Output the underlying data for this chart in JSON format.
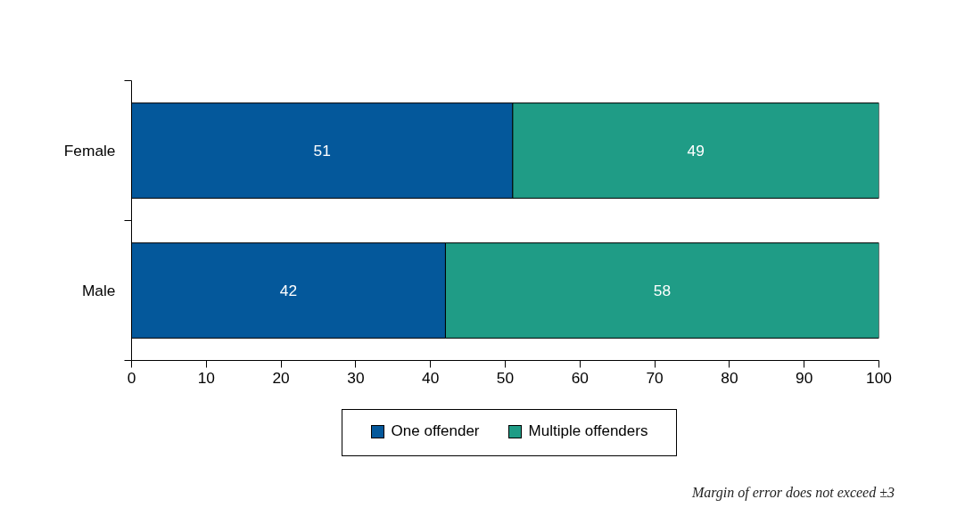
{
  "chart_data": {
    "type": "bar",
    "orientation": "horizontal",
    "stacked": true,
    "categories": [
      "Female",
      "Male"
    ],
    "series": [
      {
        "name": "One offender",
        "color": "#04589b",
        "values": [
          51,
          42
        ]
      },
      {
        "name": "Multiple offenders",
        "color": "#1f9c86",
        "values": [
          49,
          58
        ]
      }
    ],
    "xlim": [
      0,
      100
    ],
    "xticks": [
      0,
      10,
      20,
      30,
      40,
      50,
      60,
      70,
      80,
      90,
      100
    ],
    "data_labels": true,
    "grid": false,
    "legend": "bottom",
    "annotations": [
      "Margin of error does not exceed ±3"
    ]
  }
}
